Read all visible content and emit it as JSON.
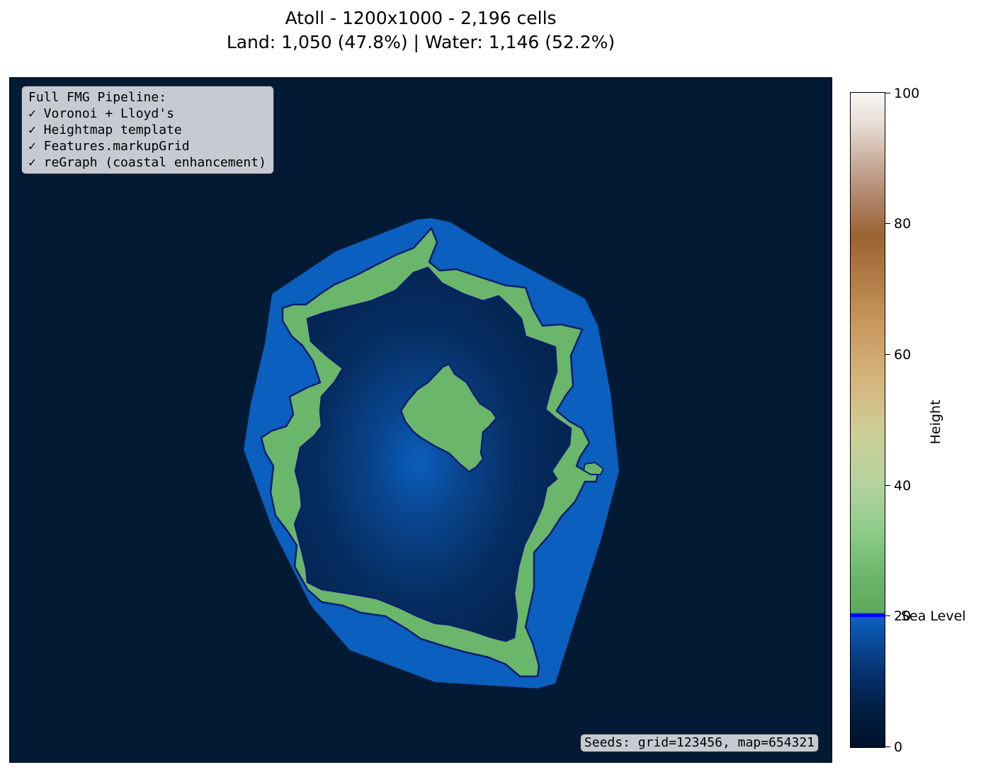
{
  "title_line1": "Atoll - 1200x1000 - 2,196 cells",
  "title_line2": "Land: 1,050 (47.8%) | Water: 1,146 (52.2%)",
  "pipeline": {
    "heading": "Full FMG Pipeline:",
    "steps": [
      "✓ Voronoi + Lloyd's",
      "✓ Heightmap template",
      "✓ Features.markupGrid",
      "✓ reGraph (coastal enhancement)"
    ]
  },
  "seeds": "Seeds: grid=123456, map=654321",
  "colorbar": {
    "label": "Height",
    "range": [
      0,
      100
    ],
    "ticks": [
      "0",
      "20",
      "40",
      "60",
      "80",
      "100"
    ],
    "sea_level_value": 20,
    "sea_level_label": "Sea Level"
  },
  "colors": {
    "deep_ocean": "#021a33",
    "shallow_water": "#0b5fbe",
    "lagoon": "#062e62",
    "land": "#6ab66a",
    "coastline": "#0a1e6e",
    "sea_level": "#0000ff"
  }
}
